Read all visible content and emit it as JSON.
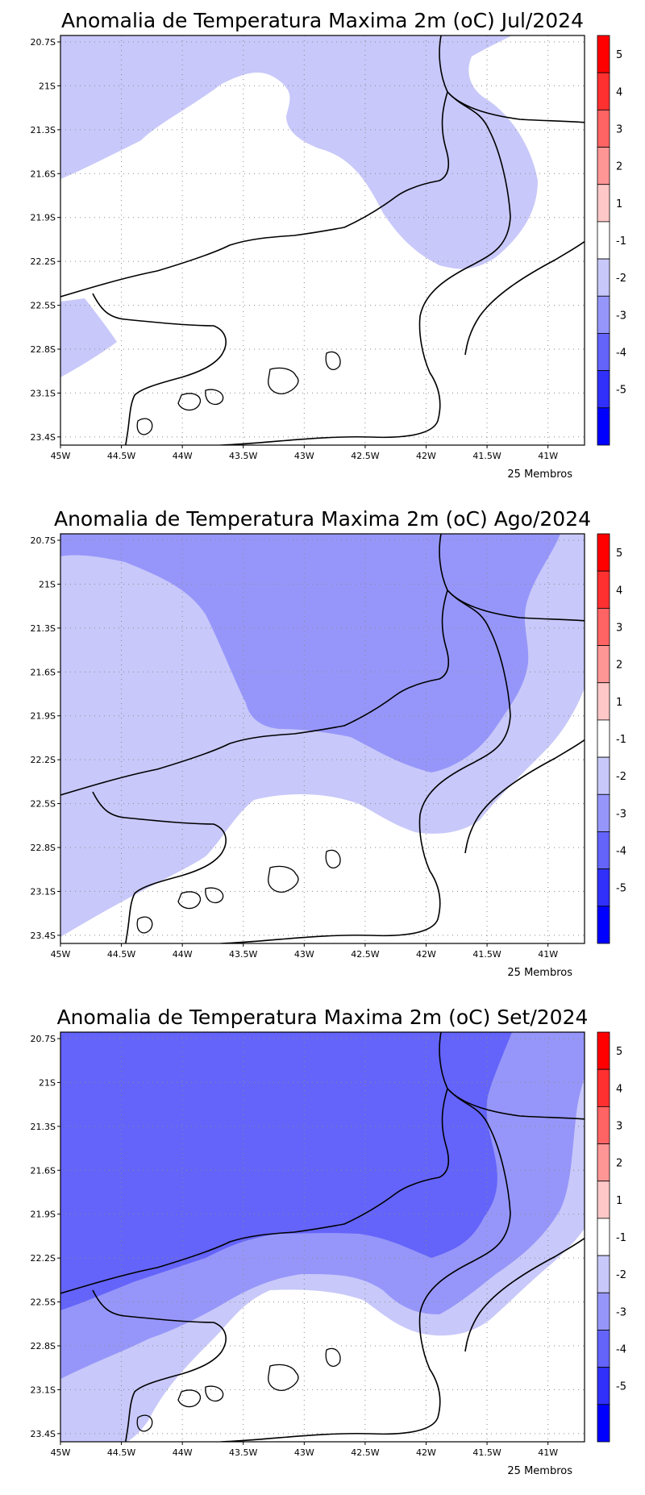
{
  "domain_note": "",
  "lon_ticks": [
    "45W",
    "44.5W",
    "44W",
    "43.5W",
    "43W",
    "42.5W",
    "42W",
    "41.5W",
    "41W"
  ],
  "lat_ticks": [
    "20.7S",
    "21S",
    "21.3S",
    "21.6S",
    "21.9S",
    "22.2S",
    "22.5S",
    "22.8S",
    "23.1S",
    "23.4S"
  ],
  "colorbar": {
    "labels": [
      "5",
      "4",
      "3",
      "2",
      "1",
      "-1",
      "-2",
      "-3",
      "-4",
      "-5"
    ],
    "colors": [
      "#ff0000",
      "#ff3030",
      "#ff6464",
      "#ff9696",
      "#ffc8c8",
      "#ffffff",
      "#c8c8fa",
      "#9696fa",
      "#6464fa",
      "#3030fa",
      "#0000ff"
    ]
  },
  "fill_colors": {
    "neg1_to_neg2": "#c8c8fa",
    "neg2_to_neg3": "#9696fa",
    "neg3_to_neg4": "#6464fa"
  },
  "panels": [
    {
      "title": "Anomalia de Temperatura Maxima 2m (oC) Jul/2024",
      "footer": "25 Membros"
    },
    {
      "title": "Anomalia de Temperatura Maxima 2m (oC) Ago/2024",
      "footer": "25 Membros"
    },
    {
      "title": "Anomalia de Temperatura Maxima 2m (oC) Set/2024",
      "footer": "25 Membros"
    }
  ]
}
